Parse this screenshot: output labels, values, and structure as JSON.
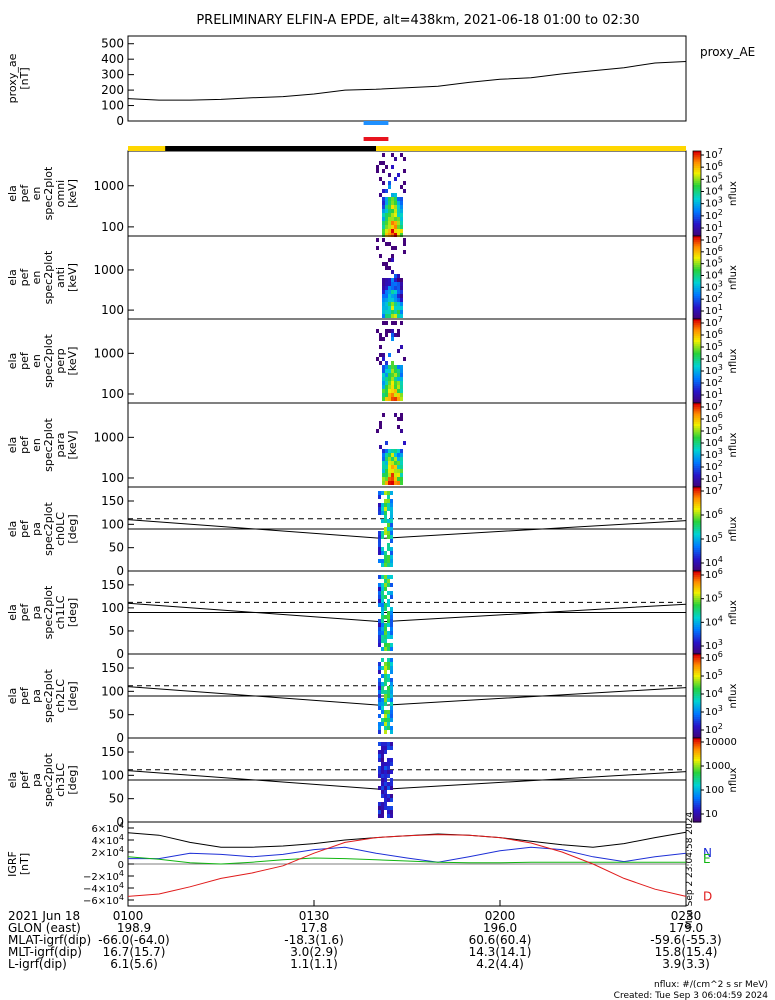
{
  "title": "PRELIMINARY ELFIN-A EPDE, alt=438km, 2021-06-18 01:00 to 02:30",
  "colors": {
    "frame": "#000000",
    "ae_line": "#000000",
    "bar_blue": "#1e90ff",
    "bar_red": "#e8141e",
    "orbit_yellow": "#ffd700",
    "orbit_black": "#000000",
    "grf_N": "#1d2fd6",
    "grf_E": "#11b511",
    "grf_D": "#e01b1b",
    "grf_T": "#000000"
  },
  "time_axis": {
    "start": "01:00",
    "end": "02:30",
    "ticks": [
      "0100",
      "0130",
      "0200",
      "0230"
    ]
  },
  "chart_data": [
    {
      "type": "line",
      "panel": "proxy_ae",
      "ylabel": [
        "proxy_ae",
        "[nT]"
      ],
      "right_label": "proxy_AE",
      "ylim": [
        0,
        550
      ],
      "yticks": [
        "500",
        "400",
        "300",
        "200",
        "100",
        "0"
      ],
      "x": [
        "01:00",
        "01:05",
        "01:10",
        "01:15",
        "01:20",
        "01:25",
        "01:30",
        "01:35",
        "01:40",
        "01:45",
        "01:50",
        "01:55",
        "02:00",
        "02:05",
        "02:10",
        "02:15",
        "02:20",
        "02:25",
        "02:30"
      ],
      "values": [
        145,
        135,
        135,
        140,
        150,
        158,
        175,
        200,
        205,
        215,
        225,
        250,
        270,
        280,
        305,
        325,
        345,
        375,
        385
      ]
    },
    {
      "type": "heatmap",
      "panel": "spec_omni",
      "ylabel": [
        "ela",
        "pef",
        "en",
        "spec2plot",
        "omni",
        "[keV]"
      ],
      "yscale": "log",
      "ylim": [
        60,
        7000
      ],
      "yticks": [
        "1000",
        "100"
      ],
      "colorbar": {
        "label": "nflux",
        "scale": "log",
        "range": [
          10,
          10000000
        ],
        "tick_labels": [
          "10^7",
          "10^6",
          "10^5",
          "10^4",
          "10^3",
          "10^2",
          "10^1"
        ]
      },
      "burst_time": "01:40 to 01:42"
    },
    {
      "type": "heatmap",
      "panel": "spec_anti",
      "ylabel": [
        "ela",
        "pef",
        "en",
        "spec2plot",
        "anti",
        "[keV]"
      ],
      "yscale": "log",
      "ylim": [
        60,
        7000
      ],
      "yticks": [
        "1000",
        "100"
      ],
      "colorbar": {
        "label": "nflux",
        "scale": "log",
        "range": [
          10,
          10000000
        ],
        "tick_labels": [
          "10^7",
          "10^6",
          "10^5",
          "10^4",
          "10^3",
          "10^2",
          "10^1"
        ]
      },
      "burst_time": "01:40 to 01:42"
    },
    {
      "type": "heatmap",
      "panel": "spec_perp",
      "ylabel": [
        "ela",
        "pef",
        "en",
        "spec2plot",
        "perp",
        "[keV]"
      ],
      "yscale": "log",
      "ylim": [
        60,
        7000
      ],
      "yticks": [
        "1000",
        "100"
      ],
      "colorbar": {
        "label": "nflux",
        "scale": "log",
        "range": [
          10,
          10000000
        ],
        "tick_labels": [
          "10^7",
          "10^6",
          "10^5",
          "10^4",
          "10^3",
          "10^2",
          "10^1"
        ]
      },
      "burst_time": "01:40 to 01:42"
    },
    {
      "type": "heatmap",
      "panel": "spec_para",
      "ylabel": [
        "ela",
        "pef",
        "en",
        "spec2plot",
        "para",
        "[keV]"
      ],
      "yscale": "log",
      "ylim": [
        60,
        7000
      ],
      "yticks": [
        "1000",
        "100"
      ],
      "colorbar": {
        "label": "nflux",
        "scale": "log",
        "range": [
          10,
          10000000
        ],
        "tick_labels": [
          "10^7",
          "10^6",
          "10^5",
          "10^4",
          "10^3",
          "10^2",
          "10^1"
        ]
      },
      "burst_time": "01:40 to 01:42"
    },
    {
      "type": "heatmap",
      "panel": "pa_ch0LC",
      "ylabel": [
        "ela",
        "pef",
        "pa",
        "spec2plot",
        "ch0LC",
        "[deg]"
      ],
      "ylim": [
        0,
        180
      ],
      "yticks": [
        "150",
        "100",
        "50",
        "0"
      ],
      "colorbar": {
        "label": "nflux",
        "scale": "log",
        "tick_labels": [
          "10^7",
          "10^6",
          "10^5",
          "10^4"
        ]
      },
      "losscone_center_deg": 70,
      "antilosscone_center_deg": 112
    },
    {
      "type": "heatmap",
      "panel": "pa_ch1LC",
      "ylabel": [
        "ela",
        "pef",
        "pa",
        "spec2plot",
        "ch1LC",
        "[deg]"
      ],
      "ylim": [
        0,
        180
      ],
      "yticks": [
        "150",
        "100",
        "50",
        "0"
      ],
      "colorbar": {
        "label": "nflux",
        "scale": "log",
        "tick_labels": [
          "10^6",
          "10^5",
          "10^4",
          "10^3"
        ]
      },
      "losscone_center_deg": 70,
      "antilosscone_center_deg": 112
    },
    {
      "type": "heatmap",
      "panel": "pa_ch2LC",
      "ylabel": [
        "ela",
        "pef",
        "pa",
        "spec2plot",
        "ch2LC",
        "[deg]"
      ],
      "ylim": [
        0,
        180
      ],
      "yticks": [
        "150",
        "100",
        "50",
        "0"
      ],
      "colorbar": {
        "label": "nflux",
        "scale": "log",
        "tick_labels": [
          "10^6",
          "10^5",
          "10^4",
          "10^3",
          "10^2"
        ]
      },
      "losscone_center_deg": 70,
      "antilosscone_center_deg": 112
    },
    {
      "type": "heatmap",
      "panel": "pa_ch3LC",
      "ylabel": [
        "ela",
        "pef",
        "pa",
        "spec2plot",
        "ch3LC",
        "[deg]"
      ],
      "ylim": [
        0,
        180
      ],
      "yticks": [
        "150",
        "100",
        "50",
        "0"
      ],
      "colorbar": {
        "label": "nflux",
        "scale": "linear-log",
        "tick_labels": [
          "10000",
          "1000",
          "100",
          "10"
        ]
      },
      "losscone_center_deg": 70,
      "antilosscone_center_deg": 112
    },
    {
      "type": "line",
      "panel": "igrf",
      "ylabel": [
        "IGRF",
        "[nT]"
      ],
      "ylim": [
        -70000,
        70000
      ],
      "yticks": [
        "6×10^4",
        "4×10^4",
        "2×10^4",
        "0",
        "−2×10^4",
        "−4×10^4",
        "−6×10^4"
      ],
      "x": [
        "01:00",
        "01:05",
        "01:10",
        "01:15",
        "01:20",
        "01:25",
        "01:30",
        "01:35",
        "01:40",
        "01:45",
        "01:50",
        "01:55",
        "02:00",
        "02:05",
        "02:10",
        "02:15",
        "02:20",
        "02:25",
        "02:30"
      ],
      "series": [
        {
          "name": "T",
          "values": [
            52000,
            48000,
            36000,
            28000,
            28000,
            30000,
            34000,
            40000,
            44000,
            47000,
            50000,
            48000,
            44000,
            38000,
            32000,
            28000,
            34000,
            44000,
            53000
          ]
        },
        {
          "name": "N",
          "values": [
            9000,
            9000,
            18000,
            16000,
            12000,
            16000,
            24000,
            28000,
            18000,
            10000,
            3000,
            12000,
            22000,
            28000,
            24000,
            12000,
            4000,
            12000,
            18000
          ]
        },
        {
          "name": "E",
          "values": [
            12000,
            8000,
            2000,
            0,
            3000,
            7000,
            10000,
            9000,
            7000,
            5000,
            3000,
            2000,
            2000,
            3000,
            3000,
            3000,
            3000,
            3000,
            3000
          ]
        },
        {
          "name": "D",
          "values": [
            -54000,
            -50000,
            -38000,
            -24000,
            -15000,
            -3000,
            18000,
            36000,
            44000,
            47000,
            49000,
            48000,
            44000,
            35000,
            20000,
            0,
            -24000,
            -42000,
            -54000
          ]
        }
      ],
      "right_labels": [
        "N",
        "E",
        "D"
      ]
    }
  ],
  "ephemeris": {
    "header": "2021 Jun 18",
    "times": [
      "0100",
      "0130",
      "0200",
      "0230"
    ],
    "rows": [
      {
        "label": "GLON (east)",
        "values": [
          "198.9",
          "17.8",
          "196.0",
          "179.0"
        ]
      },
      {
        "label": "MLAT-igrf(dip)",
        "values": [
          "-66.0(-64.0)",
          "-18.3(1.6)",
          "60.6(60.4)",
          "-59.6(-55.3)"
        ]
      },
      {
        "label": "MLT-igrf(dip)",
        "values": [
          "16.7(15.7)",
          "3.0(2.9)",
          "14.3(14.1)",
          "15.8(15.4)"
        ]
      },
      {
        "label": "L-igrf(dip)",
        "values": [
          "6.1(5.6)",
          "1.1(1.1)",
          "4.2(4.4)",
          "3.9(3.3)"
        ]
      }
    ]
  },
  "footer": {
    "units": "nflux: #/(cm^2 s sr MeV)",
    "created": "Created: Tue Sep  3 06:04:59 2024",
    "vertical_stamp": "Mon Sep  2 23:04:58 2024"
  }
}
